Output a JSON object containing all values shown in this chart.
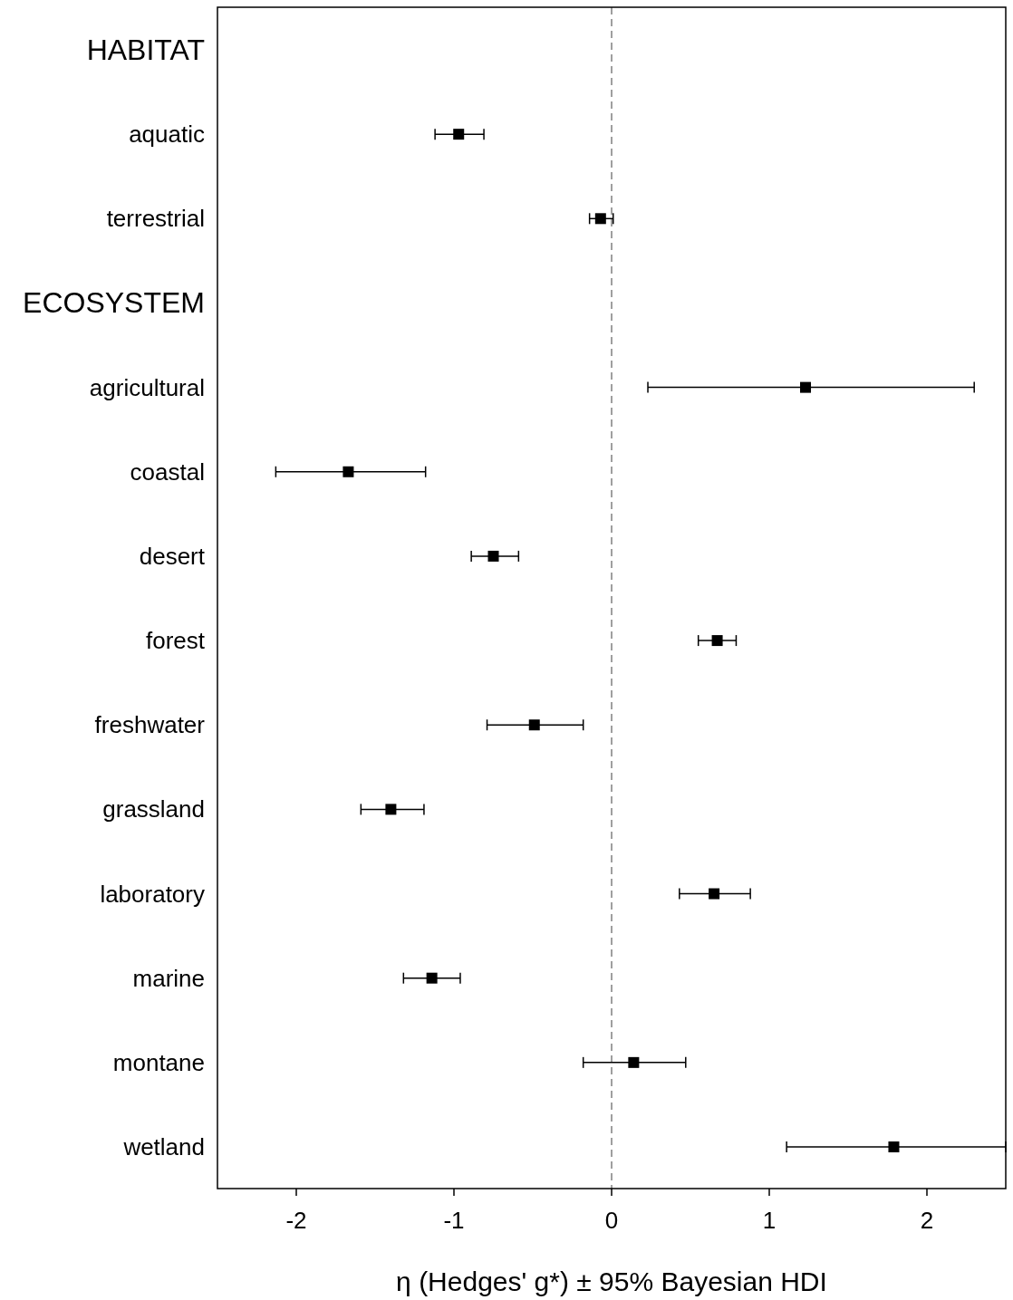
{
  "chart_data": {
    "type": "scatter",
    "orientation": "horizontal",
    "xlabel": "η (Hedges' g*) ± 95% Bayesian HDI",
    "categories": [
      "HABITAT",
      "aquatic",
      "terrestrial",
      "ECOSYSTEM",
      "agricultural",
      "coastal",
      "desert",
      "forest",
      "freshwater",
      "grassland",
      "laboratory",
      "marine",
      "montane",
      "wetland"
    ],
    "values": [
      null,
      -0.97,
      -0.07,
      null,
      1.23,
      -1.67,
      -0.75,
      0.67,
      -0.49,
      -1.4,
      0.65,
      -1.14,
      0.14,
      1.79
    ],
    "errors": [
      null,
      [
        -1.12,
        -0.81
      ],
      [
        -0.14,
        0.01
      ],
      null,
      [
        0.23,
        2.3
      ],
      [
        -2.13,
        -1.18
      ],
      [
        -0.89,
        -0.59
      ],
      [
        0.55,
        0.79
      ],
      [
        -0.79,
        -0.18
      ],
      [
        -1.59,
        -1.19
      ],
      [
        0.43,
        0.88
      ],
      [
        -1.32,
        -0.96
      ],
      [
        -0.18,
        0.47
      ],
      [
        1.11,
        2.5
      ]
    ],
    "color": "#000000",
    "marker": "square",
    "xlim": [
      -2.5,
      2.5
    ],
    "xticks": [
      -2,
      -1,
      0,
      1,
      2
    ],
    "ref_lines": [
      {
        "axis": "x",
        "value": 0,
        "color": "#808080",
        "line_style": "dashed"
      }
    ],
    "grid": false
  }
}
